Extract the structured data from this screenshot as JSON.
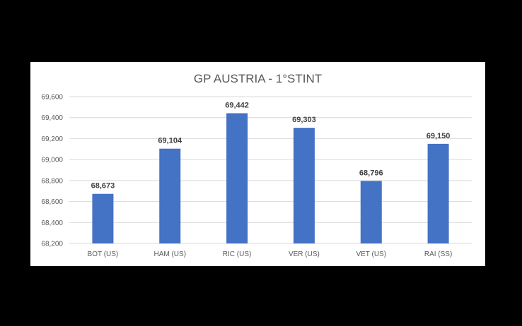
{
  "chart_data": {
    "type": "bar",
    "title": "GP AUSTRIA - 1°STINT",
    "xlabel": "",
    "ylabel": "",
    "categories": [
      "BOT (US)",
      "HAM (US)",
      "RIC (US)",
      "VER (US)",
      "VET (US)",
      "RAI (SS)"
    ],
    "values": [
      68.673,
      69.104,
      69.442,
      69.303,
      68.796,
      69.15
    ],
    "data_labels": [
      "68,673",
      "69,104",
      "69,442",
      "69,303",
      "68,796",
      "69,150"
    ],
    "ylim": [
      68.2,
      69.6
    ],
    "yticks": [
      68.2,
      68.4,
      68.6,
      68.8,
      69.0,
      69.2,
      69.4,
      69.6
    ],
    "ytick_labels": [
      "68,200",
      "68,400",
      "68,600",
      "68,800",
      "69,000",
      "69,200",
      "69,400",
      "69,600"
    ],
    "grid": true,
    "legend": "none",
    "bar_color": "#4472c4"
  }
}
